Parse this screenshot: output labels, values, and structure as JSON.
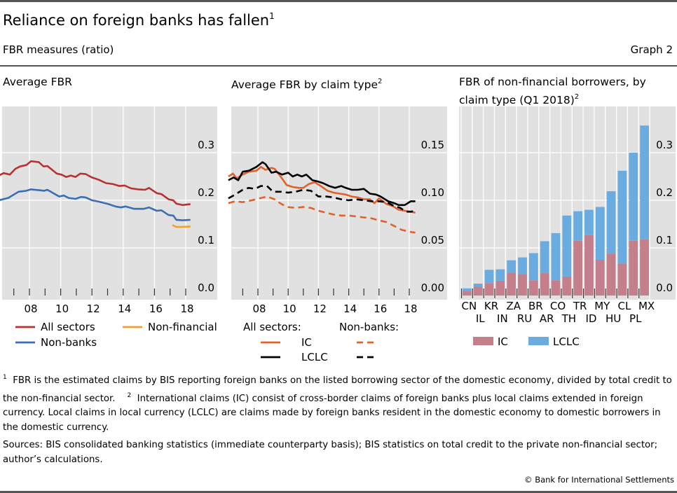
{
  "header": {
    "title": "Reliance on foreign banks has fallen",
    "title_note": "1",
    "subtitle": "FBR measures (ratio)",
    "graph_number": "Graph 2"
  },
  "colors": {
    "plot_bg": "#e1e1e1",
    "grid": "#ffffff",
    "all_sectors": "#b83233",
    "non_banks": "#3a6fb5",
    "non_financial": "#f0a12b",
    "ic_line": "#e0622a",
    "lclc_line": "#000000",
    "ic_bar": "#c47e8c",
    "lclc_bar": "#6aace0"
  },
  "chart_data": [
    {
      "type": "line",
      "title": "Average FBR",
      "title_note": "",
      "xlabel": "",
      "ylabel": "",
      "xlim": [
        2006.0,
        2019.6
      ],
      "ylim": [
        0.0,
        0.38
      ],
      "yticks": [
        0.0,
        0.1,
        0.2,
        0.3
      ],
      "ytick_labels": [
        "0.0",
        "0.1",
        "0.2",
        "0.3"
      ],
      "xticks_major": [
        2008,
        2010,
        2012,
        2014,
        2016,
        2018
      ],
      "xtick_labels": [
        "08",
        "10",
        "12",
        "14",
        "16",
        "18"
      ],
      "xticks_minor": [
        2007,
        2008,
        2009,
        2010,
        2011,
        2012,
        2013,
        2014,
        2015,
        2016,
        2017,
        2018
      ],
      "grid": true,
      "legend_position": "bottom",
      "series": [
        {
          "name": "All sectors",
          "color_key": "all_sectors",
          "dash": false,
          "x": [
            2006.05,
            2006.35,
            2006.75,
            2007.1,
            2007.4,
            2007.8,
            2008.1,
            2008.6,
            2008.9,
            2009.15,
            2009.75,
            2010.05,
            2010.35,
            2010.65,
            2010.95,
            2011.25,
            2011.6,
            2012.0,
            2012.45,
            2012.9,
            2013.35,
            2013.75,
            2014.1,
            2014.5,
            2014.95,
            2015.4,
            2015.65,
            2016.15,
            2016.45,
            2016.9,
            2017.2,
            2017.4,
            2017.8,
            2018.3
          ],
          "y": [
            0.252,
            0.257,
            0.254,
            0.266,
            0.271,
            0.274,
            0.282,
            0.28,
            0.271,
            0.272,
            0.256,
            0.254,
            0.249,
            0.252,
            0.249,
            0.256,
            0.255,
            0.248,
            0.243,
            0.236,
            0.234,
            0.23,
            0.231,
            0.225,
            0.223,
            0.222,
            0.226,
            0.215,
            0.213,
            0.202,
            0.2,
            0.193,
            0.19,
            0.192
          ]
        },
        {
          "name": "Non-banks",
          "color_key": "non_banks",
          "dash": false,
          "x": [
            2006.05,
            2006.65,
            2007.3,
            2007.8,
            2008.1,
            2008.65,
            2008.95,
            2009.15,
            2009.9,
            2010.2,
            2010.5,
            2010.95,
            2011.3,
            2011.6,
            2012.0,
            2012.45,
            2013.05,
            2013.5,
            2013.85,
            2014.15,
            2014.7,
            2015.3,
            2015.65,
            2016.15,
            2016.45,
            2016.9,
            2017.2,
            2017.4,
            2017.8,
            2018.3
          ],
          "y": [
            0.2,
            0.205,
            0.218,
            0.22,
            0.223,
            0.221,
            0.22,
            0.222,
            0.208,
            0.21,
            0.205,
            0.203,
            0.207,
            0.206,
            0.2,
            0.197,
            0.192,
            0.187,
            0.185,
            0.187,
            0.182,
            0.182,
            0.185,
            0.178,
            0.179,
            0.169,
            0.168,
            0.159,
            0.158,
            0.159
          ]
        },
        {
          "name": "Non-financial",
          "color_key": "non_financial",
          "dash": false,
          "x": [
            2017.15,
            2017.4,
            2017.8,
            2018.3
          ],
          "y": [
            0.148,
            0.144,
            0.144,
            0.145
          ]
        }
      ]
    },
    {
      "type": "line",
      "title": "Average FBR by claim type",
      "title_note": "2",
      "xlabel": "",
      "ylabel": "",
      "xlim": [
        2006.0,
        2020.0
      ],
      "ylim": [
        0.0,
        0.19
      ],
      "yticks": [
        0.0,
        0.05,
        0.1,
        0.15
      ],
      "ytick_labels": [
        "0.00",
        "0.05",
        "0.10",
        "0.15"
      ],
      "xticks_major": [
        2008,
        2010,
        2012,
        2014,
        2016,
        2018
      ],
      "xtick_labels": [
        "08",
        "10",
        "12",
        "14",
        "16",
        "18"
      ],
      "xticks_minor": [
        2007,
        2008,
        2009,
        2010,
        2011,
        2012,
        2013,
        2014,
        2015,
        2016,
        2017,
        2018
      ],
      "grid": true,
      "legend_position": "bottom",
      "legend_groups": [
        "All sectors:",
        "Non-banks:"
      ],
      "series": [
        {
          "name": "IC",
          "group": "All sectors",
          "color_key": "ic_line",
          "dash": false,
          "x": [
            2006.05,
            2006.35,
            2006.6,
            2007.0,
            2007.4,
            2007.9,
            2008.2,
            2008.5,
            2008.9,
            2009.1,
            2009.5,
            2009.9,
            2010.3,
            2010.7,
            2011.0,
            2011.35,
            2011.75,
            2012.15,
            2012.6,
            2013.0,
            2013.4,
            2013.8,
            2014.2,
            2014.6,
            2015.0,
            2015.4,
            2015.7,
            2016.0,
            2016.5,
            2016.9,
            2017.3,
            2017.7,
            2018.1,
            2018.4
          ],
          "y": [
            0.125,
            0.128,
            0.123,
            0.127,
            0.13,
            0.131,
            0.135,
            0.132,
            0.134,
            0.133,
            0.125,
            0.116,
            0.114,
            0.113,
            0.113,
            0.117,
            0.119,
            0.115,
            0.11,
            0.108,
            0.107,
            0.106,
            0.104,
            0.103,
            0.101,
            0.101,
            0.097,
            0.102,
            0.096,
            0.094,
            0.09,
            0.089,
            0.088,
            0.087
          ]
        },
        {
          "name": "LCLC",
          "group": "All sectors",
          "color_key": "lclc_line",
          "dash": false,
          "x": [
            2006.05,
            2006.4,
            2006.7,
            2007.0,
            2007.4,
            2007.9,
            2008.3,
            2008.5,
            2008.9,
            2009.2,
            2009.6,
            2010.0,
            2010.3,
            2010.6,
            2010.9,
            2011.2,
            2011.6,
            2011.9,
            2012.3,
            2012.7,
            2013.1,
            2013.5,
            2013.8,
            2014.2,
            2014.6,
            2015.0,
            2015.4,
            2015.8,
            2016.1,
            2016.6,
            2017.0,
            2017.3,
            2017.7,
            2018.1,
            2018.4
          ],
          "y": [
            0.121,
            0.124,
            0.121,
            0.13,
            0.131,
            0.135,
            0.14,
            0.138,
            0.129,
            0.13,
            0.127,
            0.129,
            0.125,
            0.127,
            0.125,
            0.127,
            0.121,
            0.12,
            0.118,
            0.115,
            0.113,
            0.115,
            0.113,
            0.111,
            0.111,
            0.112,
            0.107,
            0.106,
            0.104,
            0.099,
            0.097,
            0.095,
            0.095,
            0.099,
            0.099
          ]
        },
        {
          "name": "IC",
          "group": "Non-banks",
          "color_key": "ic_line",
          "dash": true,
          "x": [
            2006.05,
            2006.5,
            2007.0,
            2007.6,
            2008.1,
            2008.6,
            2009.1,
            2009.35,
            2009.9,
            2010.5,
            2011.0,
            2011.5,
            2012.0,
            2012.5,
            2013.0,
            2013.5,
            2014.0,
            2014.5,
            2015.0,
            2015.5,
            2016.0,
            2016.5,
            2017.0,
            2017.5,
            2018.0,
            2018.4
          ],
          "y": [
            0.097,
            0.099,
            0.098,
            0.1,
            0.102,
            0.104,
            0.101,
            0.098,
            0.093,
            0.092,
            0.093,
            0.092,
            0.089,
            0.087,
            0.085,
            0.084,
            0.084,
            0.083,
            0.082,
            0.081,
            0.079,
            0.077,
            0.073,
            0.069,
            0.067,
            0.066
          ]
        },
        {
          "name": "LCLC",
          "group": "Non-banks",
          "color_key": "lclc_line",
          "dash": true,
          "x": [
            2006.05,
            2006.5,
            2007.0,
            2007.4,
            2007.8,
            2008.2,
            2008.6,
            2009.0,
            2009.5,
            2010.0,
            2010.5,
            2011.0,
            2011.5,
            2012.0,
            2012.5,
            2013.0,
            2013.5,
            2014.0,
            2014.5,
            2015.0,
            2015.5,
            2016.0,
            2016.5,
            2017.0,
            2017.4,
            2017.8,
            2018.1,
            2018.4
          ],
          "y": [
            0.102,
            0.106,
            0.111,
            0.113,
            0.112,
            0.115,
            0.115,
            0.109,
            0.109,
            0.108,
            0.109,
            0.111,
            0.11,
            0.104,
            0.104,
            0.103,
            0.101,
            0.1,
            0.101,
            0.1,
            0.099,
            0.099,
            0.098,
            0.094,
            0.092,
            0.088,
            0.088,
            0.089
          ]
        }
      ]
    },
    {
      "type": "bar",
      "stacked": true,
      "title": "FBR of non-financial borrowers, by claim type (Q1 2018)",
      "title_note": "2",
      "xlabel": "",
      "ylabel": "",
      "ylim": [
        0.0,
        0.38
      ],
      "yticks": [
        0.0,
        0.1,
        0.2,
        0.3
      ],
      "ytick_labels": [
        "0.0",
        "0.1",
        "0.2",
        "0.3"
      ],
      "grid": true,
      "legend_position": "bottom",
      "categories": [
        "CN",
        "IL",
        "KR",
        "IN",
        "ZA",
        "RU",
        "BR",
        "AR",
        "CO",
        "TH",
        "TR",
        "ID",
        "MY",
        "HU",
        "CL",
        "PL",
        "MX"
      ],
      "series": [
        {
          "name": "IC",
          "color_key": "ic_bar",
          "values": [
            0.01,
            0.019,
            0.026,
            0.031,
            0.047,
            0.045,
            0.032,
            0.047,
            0.032,
            0.04,
            0.115,
            0.127,
            0.075,
            0.088,
            0.067,
            0.115,
            0.118
          ]
        },
        {
          "name": "LCLC",
          "color_key": "lclc_bar",
          "values": [
            0.005,
            0.006,
            0.028,
            0.024,
            0.027,
            0.035,
            0.057,
            0.067,
            0.099,
            0.128,
            0.062,
            0.053,
            0.111,
            0.131,
            0.195,
            0.185,
            0.239
          ]
        }
      ],
      "totals": [
        0.015,
        0.025,
        0.054,
        0.055,
        0.074,
        0.08,
        0.089,
        0.114,
        0.131,
        0.168,
        0.177,
        0.18,
        0.186,
        0.219,
        0.262,
        0.3,
        0.357
      ]
    }
  ],
  "footnotes": {
    "note1_marker": "1",
    "note1": "FBR is the estimated claims by BIS reporting foreign banks on the listed borrowing sector of the domestic economy, divided by total credit to the non-financial sector.",
    "note2_marker": "2",
    "note2": "International claims (IC) consist of cross-border claims of foreign banks plus local claims extended in foreign currency. Local claims in local currency (LCLC) are claims made by foreign banks resident in the domestic economy to domestic borrowers in the domestic currency.",
    "sources": "Sources: BIS consolidated banking statistics (immediate counterparty basis); BIS statistics on total credit to the private non-financial sector; author’s calculations.",
    "copyright": "© Bank for International Settlements"
  }
}
